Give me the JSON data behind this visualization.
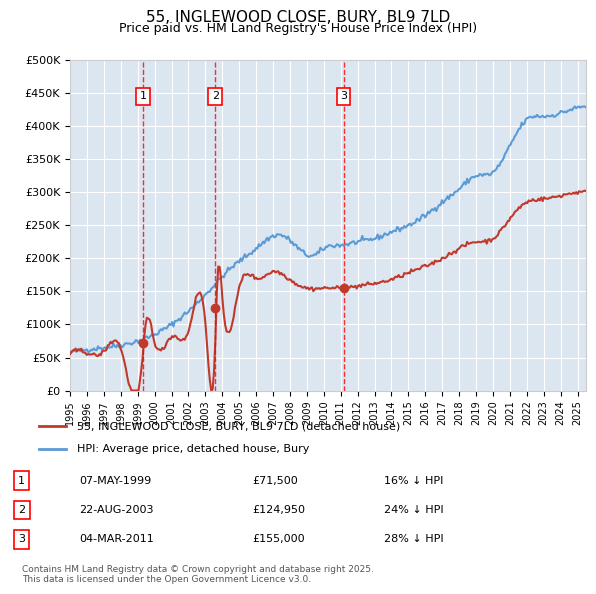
{
  "title": "55, INGLEWOOD CLOSE, BURY, BL9 7LD",
  "subtitle": "Price paid vs. HM Land Registry's House Price Index (HPI)",
  "ylabel": "",
  "ylim": [
    0,
    500000
  ],
  "yticks": [
    0,
    50000,
    100000,
    150000,
    200000,
    250000,
    300000,
    350000,
    400000,
    450000,
    500000
  ],
  "ytick_labels": [
    "£0",
    "£50K",
    "£100K",
    "£150K",
    "£200K",
    "£250K",
    "£300K",
    "£350K",
    "£400K",
    "£450K",
    "£500K"
  ],
  "background_color": "#dce6f1",
  "plot_background": "#dce6f1",
  "grid_color": "#ffffff",
  "red_line_color": "#c0392b",
  "blue_line_color": "#5b9bd5",
  "purchase_dates": [
    "1999-05-07",
    "2003-08-22",
    "2011-03-04"
  ],
  "purchase_prices": [
    71500,
    124950,
    155000
  ],
  "purchase_labels": [
    "1",
    "2",
    "3"
  ],
  "vline_color": "#ff0000",
  "marker_color": "#c0392b",
  "legend_label_red": "55, INGLEWOOD CLOSE, BURY, BL9 7LD (detached house)",
  "legend_label_blue": "HPI: Average price, detached house, Bury",
  "table_rows": [
    [
      "1",
      "07-MAY-1999",
      "£71,500",
      "16% ↓ HPI"
    ],
    [
      "2",
      "22-AUG-2003",
      "£124,950",
      "24% ↓ HPI"
    ],
    [
      "3",
      "04-MAR-2011",
      "£155,000",
      "28% ↓ HPI"
    ]
  ],
  "footnote": "Contains HM Land Registry data © Crown copyright and database right 2025.\nThis data is licensed under the Open Government Licence v3.0.",
  "title_fontsize": 11,
  "subtitle_fontsize": 9,
  "tick_fontsize": 8,
  "legend_fontsize": 8
}
